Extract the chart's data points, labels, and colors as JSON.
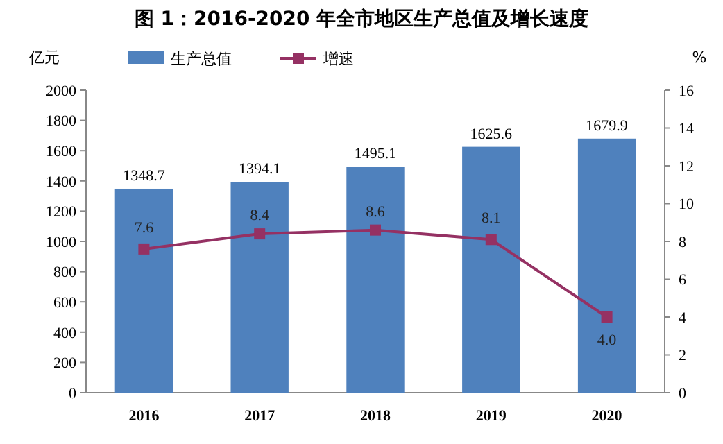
{
  "chart_data": {
    "type": "bar",
    "title": "图 1：2016-2020 年全市地区生产总值及增长速度",
    "ylabel": "亿元",
    "y2label": "%",
    "categories": [
      "2016",
      "2017",
      "2018",
      "2019",
      "2020"
    ],
    "series": [
      {
        "name": "生产总值",
        "color": "#4f81bd",
        "values": [
          1348.7,
          1394.1,
          1495.1,
          1625.6,
          1679.9
        ],
        "value_labels": [
          "1348.7",
          "1394.1",
          "1495.1",
          "1625.6",
          "1679.9"
        ]
      },
      {
        "name": "增速",
        "type": "line",
        "axis": "y2",
        "color": "#953163",
        "marker": "square",
        "values": [
          7.6,
          8.4,
          8.6,
          8.1,
          4.0
        ],
        "value_labels": [
          "7.6",
          "8.4",
          "8.6",
          "8.1",
          "4.0"
        ]
      }
    ],
    "ylim": [
      0,
      2000
    ],
    "yticks": [
      0,
      200,
      400,
      600,
      800,
      1000,
      1200,
      1400,
      1600,
      1800,
      2000
    ],
    "y2lim": [
      0,
      16
    ],
    "y2ticks": [
      0,
      2,
      4,
      6,
      8,
      10,
      12,
      14,
      16
    ],
    "data_labels": true,
    "legend": "top left",
    "grid": false
  }
}
